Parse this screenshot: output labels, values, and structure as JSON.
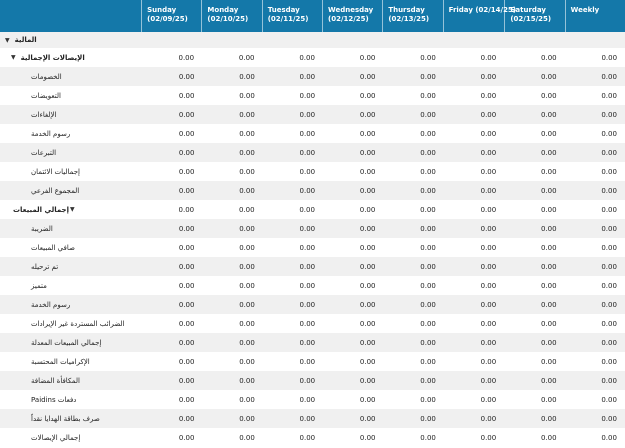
{
  "header": {
    "columns": [
      {
        "day": "Sunday",
        "date": "(02/09/25)"
      },
      {
        "day": "Monday",
        "date": "(02/10/25)"
      },
      {
        "day": "Tuesday",
        "date": "(02/11/25)"
      },
      {
        "day": "Wednesday",
        "date": "(02/12/25)"
      },
      {
        "day": "Thursday",
        "date": "(02/13/25)"
      },
      {
        "day": "Friday (02/14/25)",
        "date": ""
      },
      {
        "day": "Saturday",
        "date": "(02/15/25)"
      },
      {
        "day": "Weekly",
        "date": ""
      }
    ]
  },
  "icons": {
    "expanded": "caret-down-icon"
  },
  "rows": [
    {
      "label": "المالية",
      "type": "section",
      "values": []
    },
    {
      "label": "الإيصالات الإجمالية",
      "type": "group",
      "values": [
        "0.00",
        "0.00",
        "0.00",
        "0.00",
        "0.00",
        "0.00",
        "0.00",
        "0.00"
      ]
    },
    {
      "label": "الخصومات",
      "type": "item",
      "values": [
        "0.00",
        "0.00",
        "0.00",
        "0.00",
        "0.00",
        "0.00",
        "0.00",
        "0.00"
      ]
    },
    {
      "label": "التعويضات",
      "type": "item",
      "values": [
        "0.00",
        "0.00",
        "0.00",
        "0.00",
        "0.00",
        "0.00",
        "0.00",
        "0.00"
      ]
    },
    {
      "label": "الإلغاءات",
      "type": "item",
      "values": [
        "0.00",
        "0.00",
        "0.00",
        "0.00",
        "0.00",
        "0.00",
        "0.00",
        "0.00"
      ]
    },
    {
      "label": "رسوم الخدمة",
      "type": "item",
      "values": [
        "0.00",
        "0.00",
        "0.00",
        "0.00",
        "0.00",
        "0.00",
        "0.00",
        "0.00"
      ]
    },
    {
      "label": "التبرعات",
      "type": "item",
      "values": [
        "0.00",
        "0.00",
        "0.00",
        "0.00",
        "0.00",
        "0.00",
        "0.00",
        "0.00"
      ]
    },
    {
      "label": "إجماليات الائتمان",
      "type": "item",
      "values": [
        "0.00",
        "0.00",
        "0.00",
        "0.00",
        "0.00",
        "0.00",
        "0.00",
        "0.00"
      ]
    },
    {
      "label": "المجموع الفرعي",
      "type": "item",
      "values": [
        "0.00",
        "0.00",
        "0.00",
        "0.00",
        "0.00",
        "0.00",
        "0.00",
        "0.00"
      ]
    },
    {
      "label": "إجمالي المبيعات",
      "type": "category",
      "values": [
        "0.00",
        "0.00",
        "0.00",
        "0.00",
        "0.00",
        "0.00",
        "0.00",
        "0.00"
      ]
    },
    {
      "label": "الضريبة",
      "type": "item",
      "values": [
        "0.00",
        "0.00",
        "0.00",
        "0.00",
        "0.00",
        "0.00",
        "0.00",
        "0.00"
      ]
    },
    {
      "label": "صافي المبيعات",
      "type": "item",
      "values": [
        "0.00",
        "0.00",
        "0.00",
        "0.00",
        "0.00",
        "0.00",
        "0.00",
        "0.00"
      ]
    },
    {
      "label": "تم ترحيله",
      "type": "item",
      "values": [
        "0.00",
        "0.00",
        "0.00",
        "0.00",
        "0.00",
        "0.00",
        "0.00",
        "0.00"
      ]
    },
    {
      "label": "متميز",
      "type": "item",
      "values": [
        "0.00",
        "0.00",
        "0.00",
        "0.00",
        "0.00",
        "0.00",
        "0.00",
        "0.00"
      ]
    },
    {
      "label": "رسوم الخدمة",
      "type": "item",
      "values": [
        "0.00",
        "0.00",
        "0.00",
        "0.00",
        "0.00",
        "0.00",
        "0.00",
        "0.00"
      ]
    },
    {
      "label": "الضرائب المستردة غير الإيرادات",
      "type": "item",
      "values": [
        "0.00",
        "0.00",
        "0.00",
        "0.00",
        "0.00",
        "0.00",
        "0.00",
        "0.00"
      ]
    },
    {
      "label": "إجمالي المبيعات المعدلة",
      "type": "item",
      "values": [
        "0.00",
        "0.00",
        "0.00",
        "0.00",
        "0.00",
        "0.00",
        "0.00",
        "0.00"
      ]
    },
    {
      "label": "الإكراميات المحتسبة",
      "type": "item",
      "values": [
        "0.00",
        "0.00",
        "0.00",
        "0.00",
        "0.00",
        "0.00",
        "0.00",
        "0.00"
      ]
    },
    {
      "label": "المكافأة المضافة",
      "type": "item",
      "values": [
        "0.00",
        "0.00",
        "0.00",
        "0.00",
        "0.00",
        "0.00",
        "0.00",
        "0.00"
      ]
    },
    {
      "label": "Paidins دفعات",
      "type": "item",
      "values": [
        "0.00",
        "0.00",
        "0.00",
        "0.00",
        "0.00",
        "0.00",
        "0.00",
        "0.00"
      ]
    },
    {
      "label": "صرف بطاقة الهدايا نقداً",
      "type": "item",
      "values": [
        "0.00",
        "0.00",
        "0.00",
        "0.00",
        "0.00",
        "0.00",
        "0.00",
        "0.00"
      ]
    },
    {
      "label": "إجمالي الإيصالات",
      "type": "item",
      "values": [
        "0.00",
        "0.00",
        "0.00",
        "0.00",
        "0.00",
        "0.00",
        "0.00",
        "0.00"
      ]
    }
  ]
}
